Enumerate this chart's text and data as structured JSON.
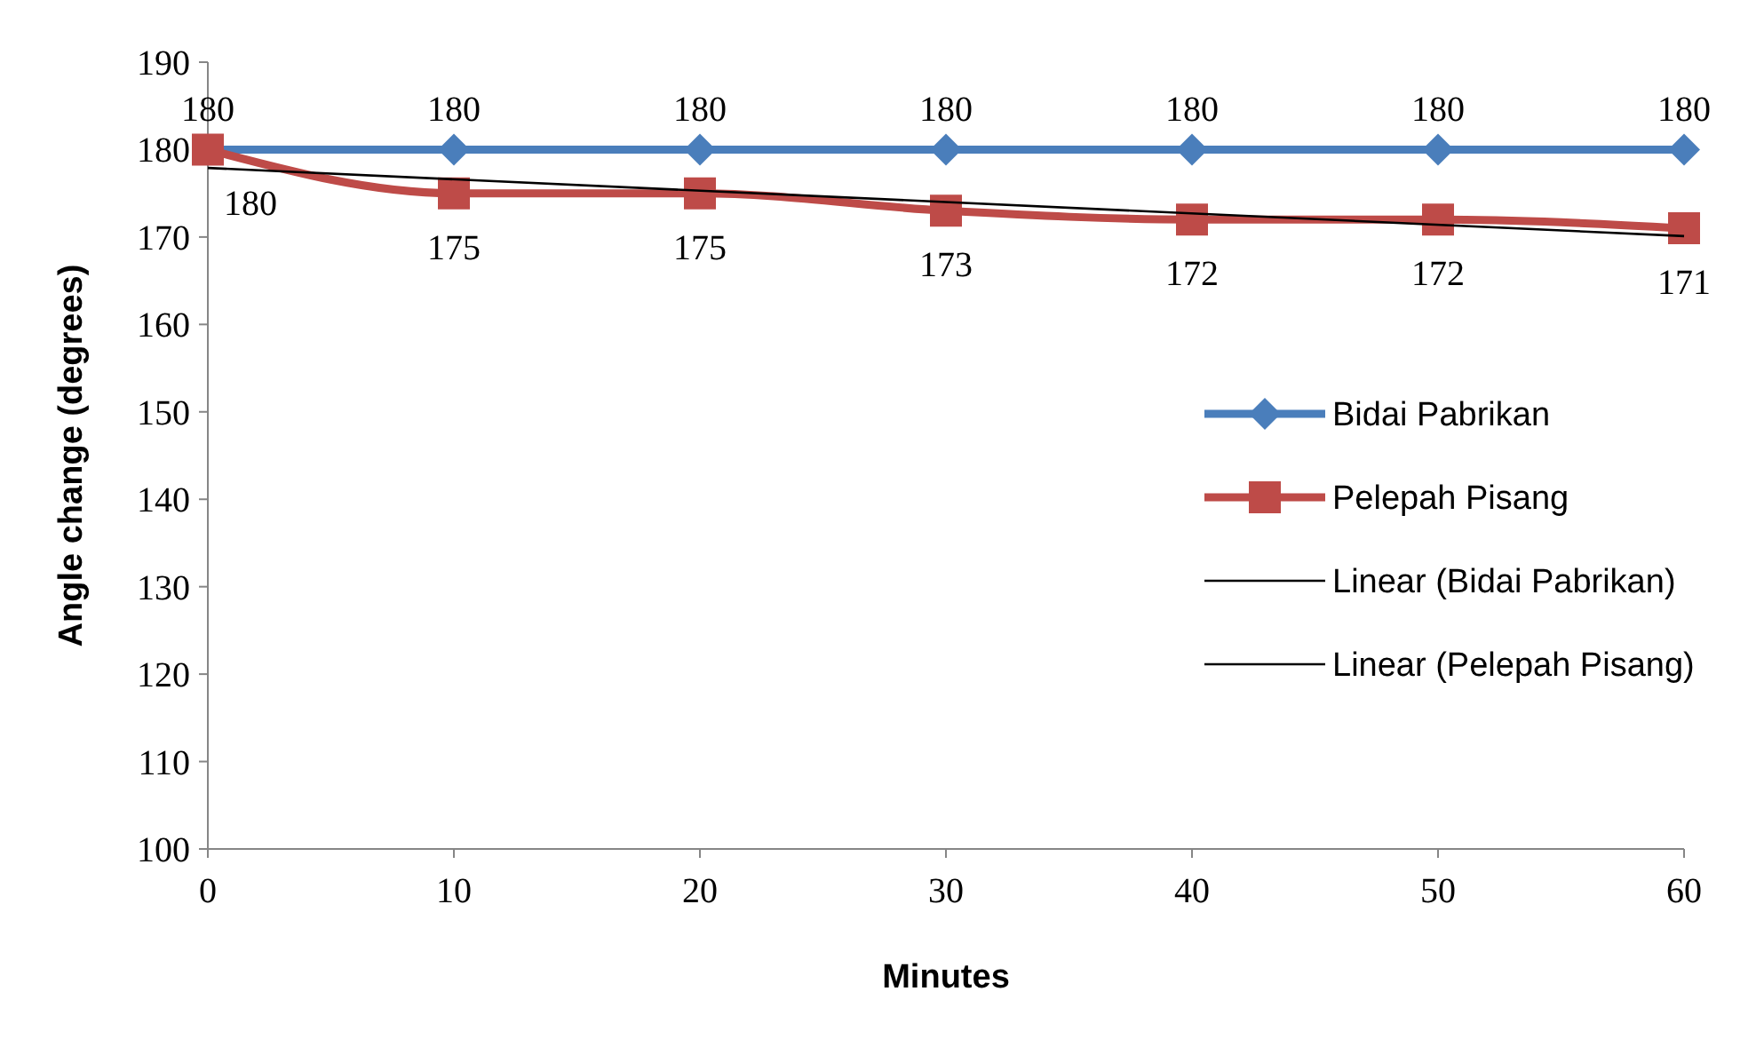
{
  "chart_data": {
    "type": "line",
    "xlabel": "Minutes",
    "ylabel": "Angle change (degrees)",
    "x": [
      0,
      10,
      20,
      30,
      40,
      50,
      60
    ],
    "xlim": [
      0,
      60
    ],
    "xticks": [
      0,
      10,
      20,
      30,
      40,
      50,
      60
    ],
    "ylim": [
      100,
      190
    ],
    "yticks": [
      100,
      110,
      120,
      130,
      140,
      150,
      160,
      170,
      180,
      190
    ],
    "grid": false,
    "legend": "right",
    "series": [
      {
        "name": "Bidai Pabrikan",
        "color": "#4a7ebb",
        "marker": "diamond",
        "data_labels": true,
        "values": [
          180,
          180,
          180,
          180,
          180,
          180,
          180
        ]
      },
      {
        "name": "Pelepah Pisang",
        "color": "#be4b48",
        "marker": "square",
        "data_labels": true,
        "values": [
          180,
          175,
          175,
          173,
          172,
          172,
          171
        ]
      },
      {
        "name": "Linear (Bidai Pabrikan)",
        "color": "#000000",
        "marker": "none",
        "values": [
          null,
          null,
          null,
          null,
          null,
          null,
          null
        ]
      },
      {
        "name": "Linear (Pelepah Pisang)",
        "color": "#000000",
        "marker": "none",
        "x": [
          0,
          60
        ],
        "values": [
          177.9,
          170.1
        ]
      }
    ]
  }
}
